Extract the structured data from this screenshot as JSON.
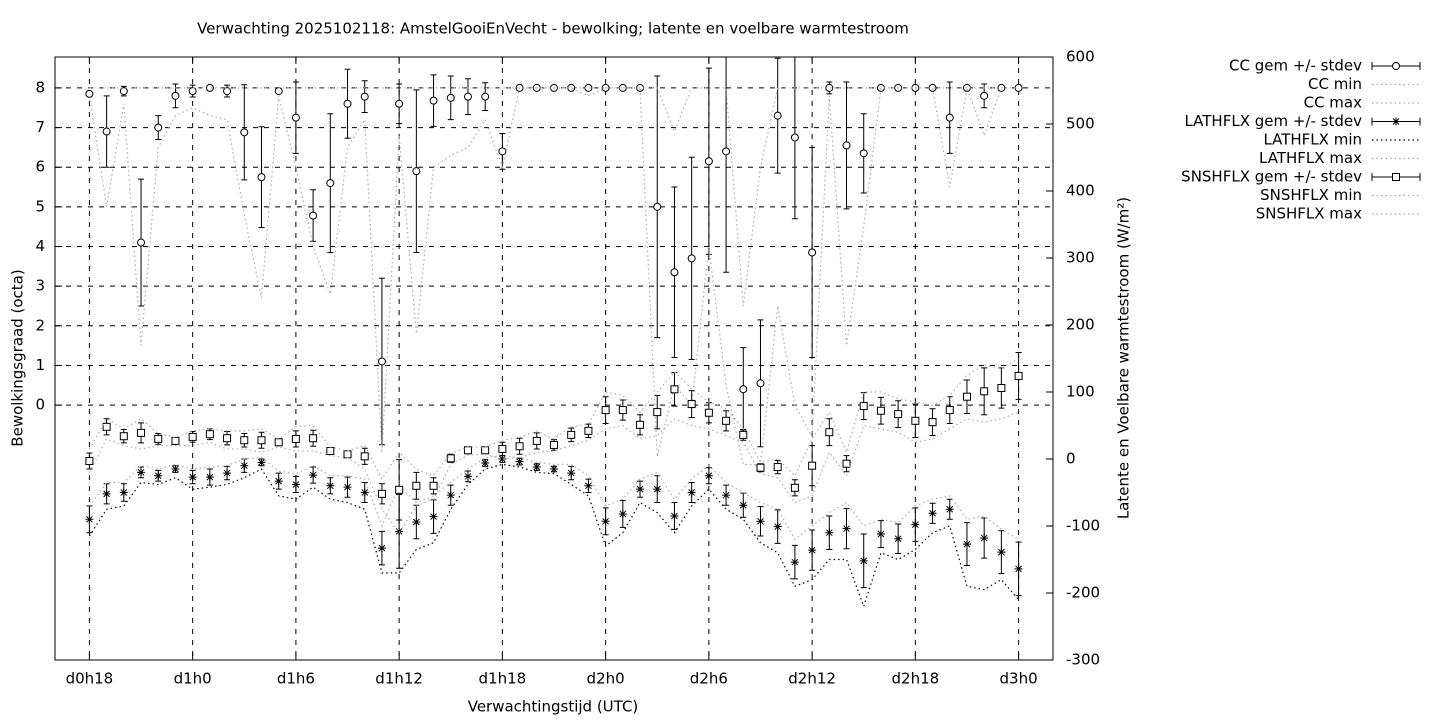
{
  "chart_data": {
    "type": "errorbar",
    "title": "Verwachting 2025102118: AmstelGooiEnVecht - bewolking; latente en voelbare warmtestroom",
    "x_label": "Verwachtingstijd (UTC)",
    "y_label": "Bewolkingsgraad (octa)",
    "y2_label": "Latente en Voelbare warmtestroom (W/m²)",
    "x": [
      0,
      1,
      2,
      3,
      4,
      5,
      6,
      7,
      8,
      9,
      10,
      11,
      12,
      13,
      14,
      15,
      16,
      17,
      18,
      19,
      20,
      21,
      22,
      23,
      24,
      25,
      26,
      27,
      28,
      29,
      30,
      31,
      32,
      33,
      34,
      35,
      36,
      37,
      38,
      39,
      40,
      41,
      42,
      43,
      44,
      45,
      46,
      47,
      48,
      49,
      50,
      51,
      52,
      53,
      54
    ],
    "xlim": [
      -2,
      56
    ],
    "xticks": [
      {
        "value": 0,
        "label": "d0h18"
      },
      {
        "value": 6,
        "label": "d1h0"
      },
      {
        "value": 12,
        "label": "d1h6"
      },
      {
        "value": 18,
        "label": "d1h12"
      },
      {
        "value": 24,
        "label": "d1h18"
      },
      {
        "value": 30,
        "label": "d2h0"
      },
      {
        "value": 36,
        "label": "d2h6"
      },
      {
        "value": 42,
        "label": "d2h12"
      },
      {
        "value": 48,
        "label": "d2h18"
      },
      {
        "value": 54,
        "label": "d3h0"
      }
    ],
    "ylim": [
      -6.43,
      8.78
    ],
    "yticks": [
      0,
      1,
      2,
      3,
      4,
      5,
      6,
      7,
      8
    ],
    "y2lim": [
      -300,
      600
    ],
    "y2ticks": [
      -300,
      -200,
      -100,
      0,
      100,
      200,
      300,
      400,
      500,
      600
    ],
    "grid": true,
    "legend": "outside-right",
    "series": [
      {
        "name": "CC gem +/- stdev",
        "axis": "y",
        "marker": "circle",
        "color": "#000000",
        "values": [
          7.85,
          6.9,
          7.92,
          4.1,
          7.0,
          7.8,
          7.92,
          8.0,
          7.92,
          6.88,
          5.75,
          7.92,
          7.25,
          4.78,
          5.6,
          7.6,
          7.78,
          1.1,
          7.6,
          5.9,
          7.68,
          7.75,
          7.78,
          7.78,
          6.4,
          8,
          8,
          8,
          8,
          8,
          8,
          8,
          8,
          5.0,
          3.35,
          3.7,
          6.15,
          6.4,
          0.4,
          0.55,
          7.3,
          6.75,
          3.85,
          8.0,
          6.55,
          6.35,
          8,
          8,
          8,
          8,
          7.25,
          8,
          7.8,
          8,
          8
        ],
        "errors": [
          0.05,
          0.9,
          0.12,
          1.6,
          0.3,
          0.3,
          0.15,
          0.05,
          0.15,
          1.2,
          1.27,
          0.05,
          0.9,
          0.65,
          1.75,
          0.87,
          0.4,
          2.1,
          0.5,
          2.05,
          0.65,
          0.55,
          0.45,
          0.35,
          0.45,
          0,
          0,
          0,
          0,
          0.05,
          0,
          0,
          0,
          3.3,
          2.15,
          2.55,
          2.35,
          3.05,
          1.05,
          1.6,
          1.45,
          2.05,
          2.65,
          0.15,
          1.6,
          1.0,
          0,
          0,
          0,
          0,
          0.9,
          0,
          0.3,
          0,
          0
        ]
      },
      {
        "name": "CC min",
        "axis": "y",
        "color": "#aaaaaa",
        "values": [
          7.8,
          5.0,
          7.6,
          1.5,
          6.5,
          7.3,
          7.5,
          7.3,
          7.2,
          4.8,
          2.7,
          7.8,
          6.0,
          4.0,
          2.8,
          6.5,
          7.2,
          -1.2,
          6.8,
          1.8,
          6.0,
          6.3,
          6.5,
          7.2,
          6.0,
          8,
          8,
          8,
          8,
          7.8,
          8,
          8,
          8,
          -1.3,
          0.5,
          0,
          4,
          0.5,
          -1.5,
          -1.5,
          2.5,
          0,
          -0.8,
          7.8,
          1.5,
          4.5,
          8,
          8,
          8,
          8,
          5.5,
          8,
          6.8,
          8,
          8
        ]
      },
      {
        "name": "CC max",
        "axis": "y",
        "color": "#aaaaaa",
        "values": [
          8,
          8,
          8,
          8,
          8,
          8,
          8,
          8,
          8,
          8,
          8,
          8,
          8,
          8,
          8,
          8,
          8,
          8,
          8,
          8,
          8,
          8,
          8,
          8,
          8,
          8,
          8,
          8,
          8,
          8,
          8,
          8,
          8,
          8,
          6.9,
          8,
          8,
          8,
          2.5,
          6.0,
          8,
          8,
          8,
          8,
          8,
          8,
          8,
          8,
          8,
          8,
          8,
          8,
          8,
          8,
          8
        ]
      },
      {
        "name": "LATHFLX gem +/- stdev",
        "axis": "y2",
        "marker": "star",
        "color": "#000000",
        "values": [
          -90,
          -52,
          -50,
          -20,
          -25,
          -15,
          -27,
          -27,
          -21,
          -10,
          -5,
          -33,
          -38,
          -24,
          -40,
          -42,
          -50,
          -133,
          -108,
          -94,
          -86,
          -54,
          -26,
          -6,
          0,
          -4,
          -12,
          -15,
          -21,
          -40,
          -93,
          -82,
          -45,
          -45,
          -85,
          -50,
          -25,
          -54,
          -69,
          -93,
          -101,
          -154,
          -136,
          -110,
          -104,
          -152,
          -112,
          -119,
          -98,
          -81,
          -75,
          -127,
          -118,
          -139,
          -164
        ],
        "errors": [
          20,
          15,
          13,
          8,
          8,
          5,
          10,
          12,
          10,
          10,
          5,
          12,
          12,
          12,
          12,
          15,
          15,
          25,
          55,
          25,
          25,
          15,
          8,
          5,
          5,
          5,
          5,
          4,
          10,
          10,
          20,
          20,
          12,
          20,
          20,
          15,
          12,
          15,
          18,
          22,
          25,
          25,
          30,
          25,
          30,
          40,
          20,
          22,
          25,
          15,
          15,
          32,
          30,
          32,
          40
        ]
      },
      {
        "name": "LATHFLX min",
        "axis": "y2",
        "color": "#000000",
        "values": [
          -115,
          -75,
          -70,
          -35,
          -38,
          -28,
          -45,
          -42,
          -38,
          -28,
          -15,
          -55,
          -60,
          -42,
          -60,
          -65,
          -75,
          -170,
          -170,
          -135,
          -125,
          -75,
          -38,
          -15,
          -8,
          -12,
          -20,
          -22,
          -38,
          -55,
          -130,
          -110,
          -65,
          -80,
          -110,
          -70,
          -45,
          -75,
          -90,
          -125,
          -140,
          -190,
          -180,
          -150,
          -150,
          -220,
          -140,
          -150,
          -135,
          -110,
          -100,
          -190,
          -195,
          -180,
          -210
        ]
      },
      {
        "name": "LATHFLX max",
        "axis": "y2",
        "color": "#aaaaaa",
        "values": [
          -70,
          -35,
          -35,
          -10,
          -15,
          -8,
          -15,
          -12,
          -10,
          0,
          2,
          -18,
          -22,
          -10,
          -25,
          -25,
          -30,
          -100,
          -40,
          -65,
          -55,
          -35,
          -15,
          2,
          5,
          2,
          -5,
          -8,
          -8,
          -25,
          -70,
          -60,
          -30,
          -20,
          -60,
          -30,
          -10,
          -35,
          -50,
          -65,
          -75,
          -120,
          -100,
          -80,
          -65,
          -100,
          -90,
          -95,
          -70,
          -60,
          -55,
          -90,
          -85,
          -105,
          -120
        ]
      },
      {
        "name": "SNSHFLX gem +/- stdev",
        "axis": "y2",
        "marker": "square",
        "color": "#000000",
        "values": [
          -3,
          48,
          34,
          39,
          30,
          27,
          33,
          37,
          31,
          28,
          28,
          25,
          30,
          31,
          12,
          7,
          4,
          -52,
          -46,
          -40,
          -40,
          1,
          13,
          13,
          15,
          19,
          27,
          21,
          36,
          42,
          73,
          73,
          51,
          70,
          104,
          82,
          69,
          57,
          36,
          -13,
          -12,
          -43,
          -10,
          40,
          -7,
          79,
          72,
          67,
          57,
          55,
          73,
          93,
          101,
          106,
          124
        ],
        "errors": [
          12,
          12,
          10,
          15,
          8,
          5,
          8,
          8,
          10,
          10,
          12,
          5,
          12,
          12,
          5,
          4,
          12,
          15,
          45,
          20,
          12,
          6,
          5,
          5,
          10,
          12,
          12,
          8,
          10,
          10,
          20,
          15,
          15,
          25,
          25,
          20,
          15,
          15,
          8,
          6,
          10,
          12,
          30,
          20,
          12,
          20,
          20,
          20,
          25,
          20,
          20,
          25,
          35,
          30,
          35
        ]
      },
      {
        "name": "SNSHFLX min",
        "axis": "y2",
        "color": "#aaaaaa",
        "values": [
          -20,
          30,
          20,
          15,
          20,
          20,
          20,
          25,
          15,
          15,
          10,
          18,
          12,
          12,
          5,
          2,
          -15,
          -75,
          -110,
          -70,
          -60,
          -8,
          6,
          7,
          0,
          2,
          10,
          12,
          20,
          28,
          45,
          50,
          30,
          35,
          60,
          50,
          45,
          35,
          25,
          -22,
          -28,
          -65,
          -55,
          10,
          -25,
          50,
          45,
          40,
          25,
          30,
          45,
          60,
          55,
          60,
          70
        ]
      },
      {
        "name": "SNSHFLX max",
        "axis": "y2",
        "color": "#aaaaaa",
        "values": [
          15,
          60,
          45,
          60,
          38,
          32,
          42,
          45,
          42,
          42,
          45,
          30,
          48,
          50,
          18,
          12,
          20,
          -30,
          10,
          -15,
          -25,
          8,
          18,
          18,
          28,
          32,
          42,
          30,
          48,
          52,
          100,
          95,
          70,
          100,
          130,
          105,
          85,
          75,
          45,
          -5,
          0,
          -25,
          30,
          70,
          10,
          100,
          100,
          90,
          85,
          80,
          95,
          125,
          140,
          135,
          150
        ]
      }
    ]
  }
}
